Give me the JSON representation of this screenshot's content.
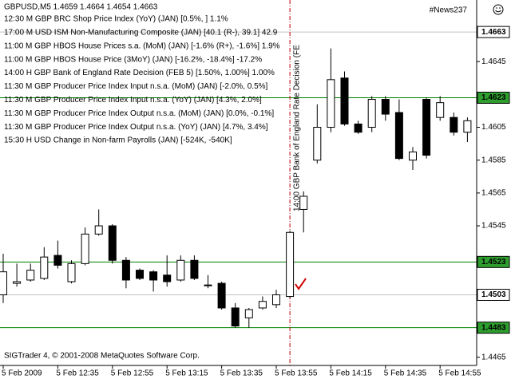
{
  "chart_data": {
    "type": "candlestick",
    "title": "GBPUSD,M5  1.4659 1.4664 1.4654 1.4663",
    "badge": "#News237",
    "footer": "SIGTrader 4, © 2001-2008 MetaQuotes Software Corp.",
    "news": [
      "12:30 M GBP BRC Shop Price Index (YoY) (JAN) [0.5%, ] 1.1%",
      "17:00 M USD ISM Non-Manufacturing Composite (JAN) [40.1 (R-), 39.1] 42.9",
      "11:00 M GBP HBOS House Prices s.a. (MoM) (JAN) [-1.6% (R+), -1.6%] 1.9%",
      "11:00 M GBP HBOS House Price (3MoY) (JAN) [-16.2%, -18.4%] -17.2%",
      "14:00 H GBP Bank of England Rate Decision (FEB 5) [1.50%, 1.00%] 1.00%",
      "11:30 M GBP Producer Price Index Input n.s.a. (MoM) (JAN) [-2.0%, 0.5%]",
      "11:30 M GBP Producer Price Index Input n.s.a. (YoY) (JAN) [4.3%, 2.0%]",
      "11:30 M GBP Producer Price Index Output n.s.a. (MoM) (JAN) [0.0%, -0.1%]",
      "11:30 M GBP Producer Price Index Output n.s.a. (YoY) (JAN) [4.7%, 3.4%]",
      "15:30 H USD Change in Non-farm Payrolls (JAN) [-524K, -540K]"
    ],
    "event": {
      "index": 21,
      "label": "14:00 GBP Bank of England Rate Decision (FE",
      "color": "#c00000"
    },
    "categories": [
      "5 Feb 2009",
      null,
      null,
      null,
      "5 Feb 12:35",
      null,
      null,
      null,
      "5 Feb 12:55",
      null,
      null,
      null,
      "5 Feb 13:15",
      null,
      null,
      null,
      "5 Feb 13:35",
      null,
      null,
      null,
      "5 Feb 13:55",
      null,
      null,
      null,
      "5 Feb 14:15",
      null,
      null,
      null,
      "5 Feb 14:35",
      null,
      null,
      null,
      "5 Feb 14:55",
      null,
      null
    ],
    "open": [
      1.4503,
      1.451,
      1.4512,
      1.4513,
      1.4527,
      1.4511,
      1.4522,
      1.454,
      1.4545,
      1.4524,
      1.4518,
      1.4517,
      1.4515,
      1.4512,
      1.4524,
      1.4509,
      1.451,
      1.4495,
      1.4489,
      1.4495,
      1.4497,
      1.4502,
      1.4555,
      1.4585,
      1.4605,
      1.4635,
      1.4607,
      1.4605,
      1.4622,
      1.4614,
      1.4585,
      1.4622,
      1.4611,
      1.4611,
      1.4602
    ],
    "high": [
      1.4528,
      1.4522,
      1.4522,
      1.4532,
      1.4536,
      1.4524,
      1.4544,
      1.4555,
      1.4546,
      1.4526,
      1.4519,
      1.4518,
      1.4527,
      1.4527,
      1.4527,
      1.4515,
      1.4511,
      1.4498,
      1.4495,
      1.4502,
      1.4506,
      1.4542,
      1.4566,
      1.4619,
      1.4653,
      1.4639,
      1.4609,
      1.4624,
      1.4624,
      1.4622,
      1.4593,
      1.4623,
      1.4624,
      1.4614,
      1.4611
    ],
    "low": [
      1.4498,
      1.4508,
      1.4511,
      1.4512,
      1.4519,
      1.451,
      1.4521,
      1.4539,
      1.4522,
      1.4507,
      1.4512,
      1.4505,
      1.4508,
      1.4511,
      1.4512,
      1.4507,
      1.4494,
      1.4483,
      1.4483,
      1.4494,
      1.4495,
      1.4501,
      1.4541,
      1.4583,
      1.4602,
      1.4606,
      1.4601,
      1.4602,
      1.4609,
      1.4585,
      1.4579,
      1.4586,
      1.4609,
      1.46,
      1.4596
    ],
    "close": [
      1.4517,
      1.4511,
      1.4518,
      1.4526,
      1.4521,
      1.4522,
      1.454,
      1.4545,
      1.4524,
      1.4512,
      1.4513,
      1.4512,
      1.4511,
      1.4524,
      1.4513,
      1.4509,
      1.4495,
      1.4484,
      1.4494,
      1.4499,
      1.4503,
      1.4541,
      1.4563,
      1.4605,
      1.4634,
      1.4607,
      1.4602,
      1.4622,
      1.4613,
      1.4586,
      1.459,
      1.4588,
      1.462,
      1.4602,
      1.4609
    ],
    "up_color": "#ffffff",
    "down_color": "#000000",
    "ylim": [
      1.446,
      1.46825
    ],
    "yticks": [
      1.4645,
      1.4605,
      1.4585,
      1.4565,
      1.4545,
      1.4465
    ],
    "levels": [
      {
        "value": 1.4663,
        "color": "#c0c0c0",
        "box": "#ffffff"
      },
      {
        "value": 1.4623,
        "color": "#008000",
        "box": "#2e9e2e"
      },
      {
        "value": 1.4523,
        "color": "#008000",
        "box": "#2e9e2e"
      },
      {
        "value": 1.4503,
        "color": "#c0c0c0",
        "box": "#ffffff"
      },
      {
        "value": 1.4483,
        "color": "#008000",
        "box": "#2e9e2e"
      }
    ]
  }
}
